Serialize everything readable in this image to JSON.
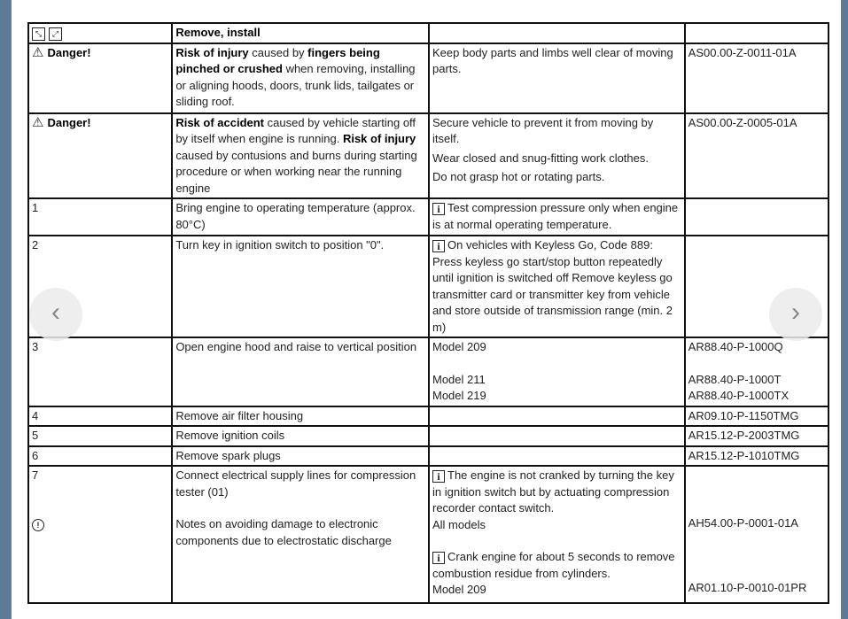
{
  "header": {
    "icons": [
      "remove-icon",
      "install-icon"
    ],
    "title": "Remove, install"
  },
  "dangers": [
    {
      "label": "Danger!",
      "text_parts": [
        {
          "b": "Risk of injury"
        },
        {
          "t": " caused by "
        },
        {
          "b": "fingers being pinched or crushed"
        },
        {
          "t": " when removing, installing or aligning hoods, doors, trunk lids, tailgates or sliding roof."
        }
      ],
      "action": [
        "Keep body parts and limbs well clear of moving parts."
      ],
      "ref": "AS00.00-Z-0011-01A"
    },
    {
      "label": "Danger!",
      "text_parts": [
        {
          "b": "Risk of accident"
        },
        {
          "t": " caused by vehicle starting off by itself when engine is running. "
        },
        {
          "b": "Risk of injury"
        },
        {
          "t": " caused by contusions and burns during starting procedure or when working near the running engine"
        }
      ],
      "action": [
        "Secure vehicle to prevent it from moving by itself.",
        "Wear closed and snug-fitting work clothes.",
        "Do not grasp hot or rotating parts."
      ],
      "ref": "AS00.00-Z-0005-01A"
    }
  ],
  "steps": [
    {
      "num": "1",
      "text": "Bring engine to operating temperature (approx. 80°C)",
      "note": "Test compression pressure only when engine is at normal operating temperature."
    },
    {
      "num": "2",
      "text": "Turn key in ignition switch to position \"0\".",
      "note": "On vehicles with Keyless Go, Code 889: Press keyless go start/stop button repeatedly until ignition is switched off Remove keyless go transmitter card or transmitter key from vehicle and store outside of transmission range (min. 2 m)"
    },
    {
      "num": "3",
      "text": "Open engine hood and raise to vertical position",
      "models": [
        "Model 209",
        "Model 211",
        "Model 219"
      ],
      "refs": [
        "AR88.40-P-1000Q",
        "AR88.40-P-1000T",
        "AR88.40-P-1000TX"
      ]
    },
    {
      "num": "4",
      "text": "Remove air filter housing",
      "ref": "AR09.10-P-1150TMG"
    },
    {
      "num": "5",
      "text": "Remove ignition coils",
      "ref": "AR15.12-P-2003TMG"
    },
    {
      "num": "6",
      "text": "Remove spark plugs",
      "ref": "AR15.12-P-1010TMG"
    },
    {
      "num": "7",
      "text": "Connect electrical supply lines for compression tester (01)",
      "esd_text": "Notes on avoiding damage to electronic components due to electrostatic discharge",
      "note1": "The engine is not cranked by turning the key in ignition switch but by actuating compression recorder contact switch.",
      "note1_model": "All models",
      "note1_ref": "AH54.00-P-0001-01A",
      "note2": "Crank engine for about 5 seconds to remove combustion residue from cylinders.",
      "note2_model": "Model 209",
      "note2_ref": "AR01.10-P-0010-01PR"
    }
  ],
  "nav": {
    "prev": "‹",
    "next": "›"
  },
  "colors": {
    "frame": "#5f7a96",
    "border": "#111111"
  }
}
